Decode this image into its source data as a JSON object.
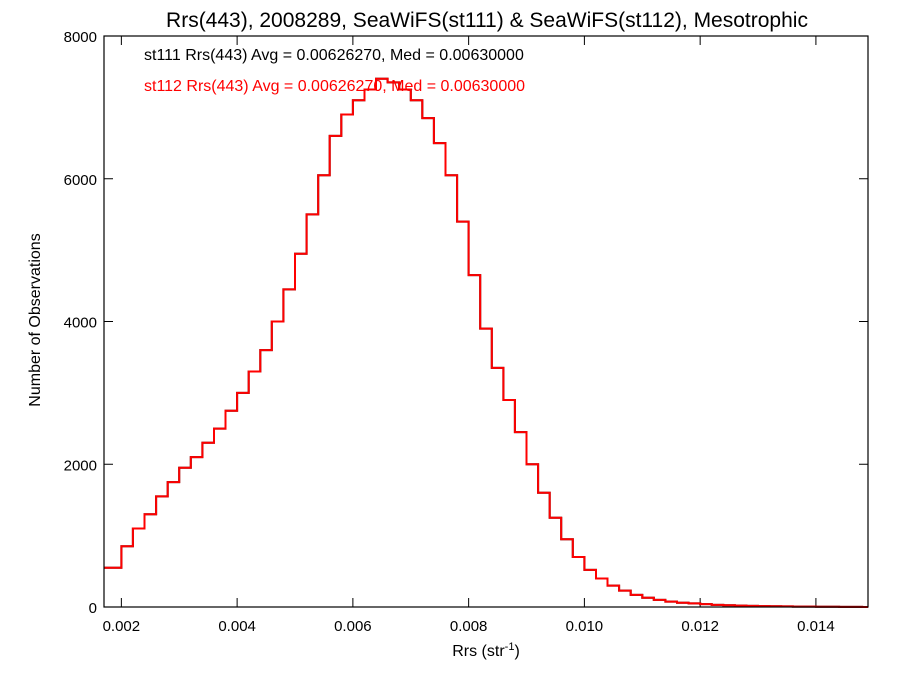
{
  "chart_data": {
    "type": "line",
    "title": "Rrs(443), 2008289, SeaWiFS(st111) & SeaWiFS(st112), Mesotrophic",
    "xlabel": "Rrs (str",
    "xlabel_sup": "-1",
    "xlabel_close": ")",
    "ylabel": "Number of Observations",
    "xlim": [
      0.0017,
      0.0149
    ],
    "ylim": [
      0,
      8000
    ],
    "x_ticks": [
      0.002,
      0.004,
      0.006,
      0.008,
      0.01,
      0.012,
      0.014
    ],
    "x_tick_labels": [
      "0.002",
      "0.004",
      "0.006",
      "0.008",
      "0.010",
      "0.012",
      "0.014"
    ],
    "y_ticks": [
      0,
      2000,
      4000,
      6000,
      8000
    ],
    "y_tick_labels": [
      "0",
      "2000",
      "4000",
      "6000",
      "8000"
    ],
    "grid": false,
    "annotations": [
      {
        "text": "st111 Rrs(443) Avg = 0.00626270, Med = 0.00630000",
        "color": "#000000"
      },
      {
        "text": "st112 Rrs(443) Avg = 0.00626270, Med = 0.00630000",
        "color": "#ff0000"
      }
    ],
    "series": [
      {
        "label": "st111",
        "color": "#000000",
        "x": [
          0.0017,
          0.002,
          0.0022,
          0.0024,
          0.0026,
          0.0028,
          0.003,
          0.0032,
          0.0034,
          0.0036,
          0.0038,
          0.004,
          0.0042,
          0.0044,
          0.0046,
          0.0048,
          0.005,
          0.0052,
          0.0054,
          0.0056,
          0.0058,
          0.006,
          0.0062,
          0.0064,
          0.0066,
          0.0068,
          0.007,
          0.0072,
          0.0074,
          0.0076,
          0.0078,
          0.008,
          0.0082,
          0.0084,
          0.0086,
          0.0088,
          0.009,
          0.0092,
          0.0094,
          0.0096,
          0.0098,
          0.01,
          0.0102,
          0.0104,
          0.0106,
          0.0108,
          0.011,
          0.0112,
          0.0114,
          0.0116,
          0.0118,
          0.012,
          0.0122,
          0.0124,
          0.0126,
          0.0128,
          0.013,
          0.0132,
          0.0134,
          0.0136,
          0.0138,
          0.014,
          0.0142,
          0.0144,
          0.0146,
          0.0148
        ],
        "values": [
          550,
          850,
          1100,
          1300,
          1550,
          1750,
          1950,
          2100,
          2300,
          2500,
          2750,
          3000,
          3300,
          3600,
          4000,
          4450,
          4950,
          5500,
          6050,
          6600,
          6900,
          7100,
          7250,
          7400,
          7350,
          7250,
          7100,
          6850,
          6500,
          6050,
          5400,
          4650,
          3900,
          3350,
          2900,
          2450,
          2000,
          1600,
          1250,
          950,
          700,
          520,
          400,
          300,
          230,
          170,
          130,
          100,
          75,
          60,
          50,
          40,
          30,
          25,
          20,
          15,
          12,
          10,
          8,
          6,
          5,
          4,
          3,
          2,
          1,
          0
        ]
      },
      {
        "label": "st112",
        "color": "#ff0000",
        "x": [
          0.0017,
          0.002,
          0.0022,
          0.0024,
          0.0026,
          0.0028,
          0.003,
          0.0032,
          0.0034,
          0.0036,
          0.0038,
          0.004,
          0.0042,
          0.0044,
          0.0046,
          0.0048,
          0.005,
          0.0052,
          0.0054,
          0.0056,
          0.0058,
          0.006,
          0.0062,
          0.0064,
          0.0066,
          0.0068,
          0.007,
          0.0072,
          0.0074,
          0.0076,
          0.0078,
          0.008,
          0.0082,
          0.0084,
          0.0086,
          0.0088,
          0.009,
          0.0092,
          0.0094,
          0.0096,
          0.0098,
          0.01,
          0.0102,
          0.0104,
          0.0106,
          0.0108,
          0.011,
          0.0112,
          0.0114,
          0.0116,
          0.0118,
          0.012,
          0.0122,
          0.0124,
          0.0126,
          0.0128,
          0.013,
          0.0132,
          0.0134,
          0.0136,
          0.0138,
          0.014,
          0.0142,
          0.0144,
          0.0146,
          0.0148
        ],
        "values": [
          550,
          850,
          1100,
          1300,
          1550,
          1750,
          1950,
          2100,
          2300,
          2500,
          2750,
          3000,
          3300,
          3600,
          4000,
          4450,
          4950,
          5500,
          6050,
          6600,
          6900,
          7100,
          7250,
          7400,
          7350,
          7250,
          7100,
          6850,
          6500,
          6050,
          5400,
          4650,
          3900,
          3350,
          2900,
          2450,
          2000,
          1600,
          1250,
          950,
          700,
          520,
          400,
          300,
          230,
          170,
          130,
          100,
          75,
          60,
          50,
          40,
          30,
          25,
          20,
          15,
          12,
          10,
          8,
          6,
          5,
          4,
          3,
          2,
          1,
          0
        ]
      }
    ]
  }
}
